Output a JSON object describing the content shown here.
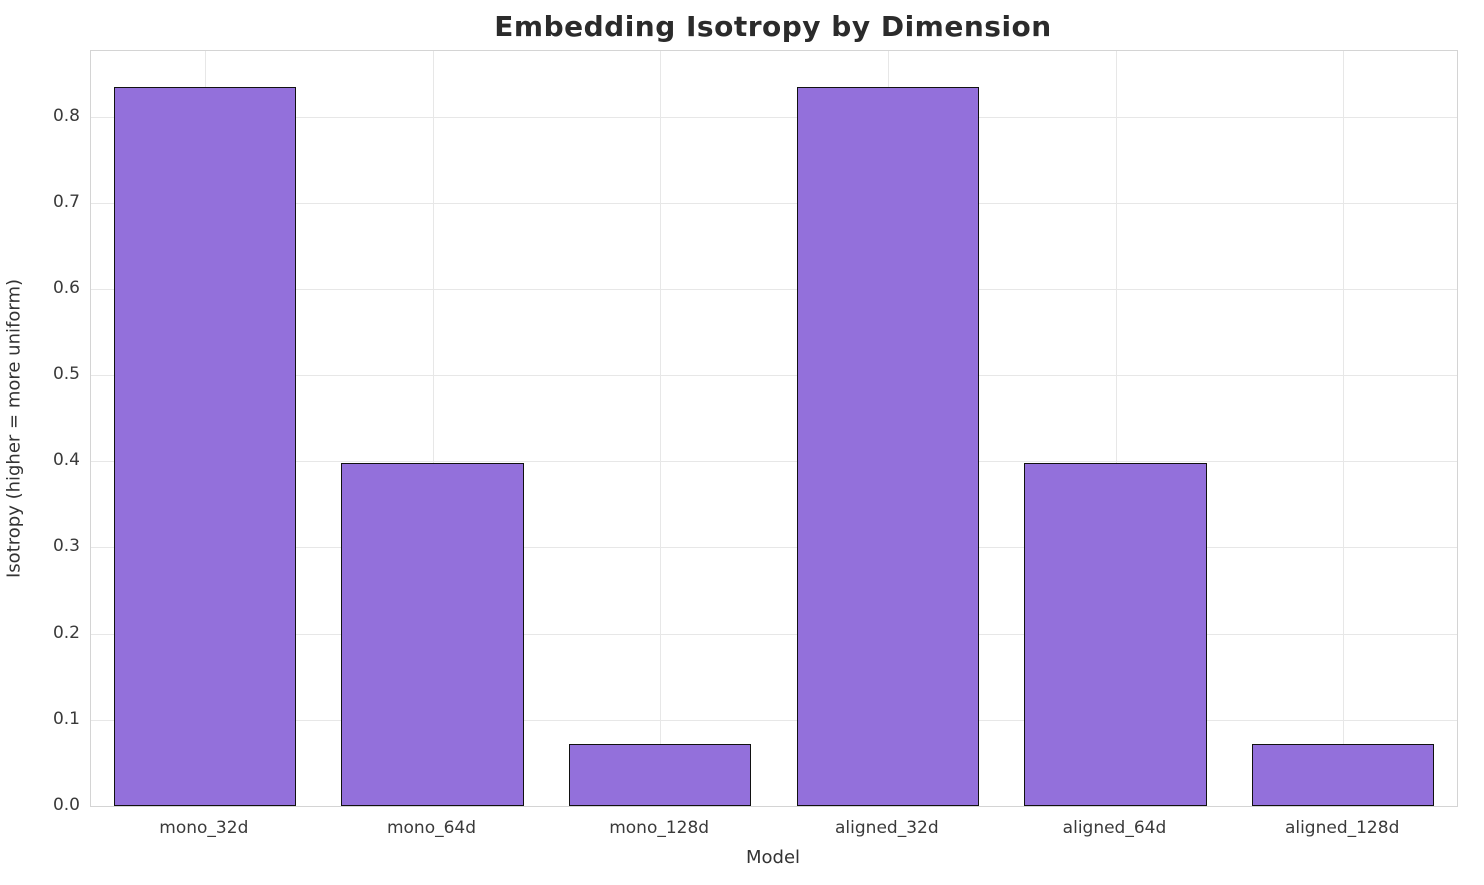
{
  "chart_data": {
    "type": "bar",
    "title": "Embedding Isotropy by Dimension",
    "xlabel": "Model",
    "ylabel": "Isotropy (higher = more uniform)",
    "categories": [
      "mono_32d",
      "mono_64d",
      "mono_128d",
      "aligned_32d",
      "aligned_64d",
      "aligned_128d"
    ],
    "values": [
      0.834,
      0.398,
      0.072,
      0.834,
      0.398,
      0.072
    ],
    "ylim": [
      0,
      0.876
    ],
    "yticks": [
      0.0,
      0.1,
      0.2,
      0.3,
      0.4,
      0.5,
      0.6,
      0.7,
      0.8
    ],
    "ytick_labels": [
      "0.0",
      "0.1",
      "0.2",
      "0.3",
      "0.4",
      "0.5",
      "0.6",
      "0.7",
      "0.8"
    ],
    "grid": "horizontal and vertical light gray gridlines behind bars",
    "legend_position": "none",
    "bar_color": "#9370DB",
    "bar_edge_color": "#111111",
    "bar_width_fraction": 0.8
  }
}
